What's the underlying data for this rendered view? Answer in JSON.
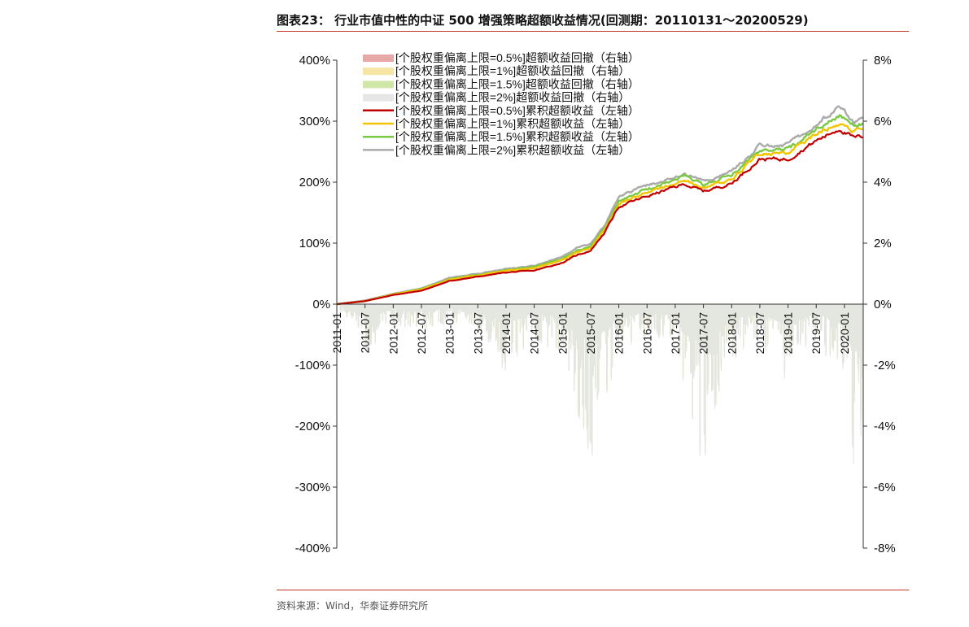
{
  "header": {
    "title": "图表23： 行业市值中性的中证 500 增强策略超额收益情况(回测期：20110131～20200529)"
  },
  "footer": {
    "source": "资料来源：Wind，华泰证券研究所"
  },
  "colors": {
    "accent_rule": "#c0392b",
    "axis": "#333333"
  },
  "chart_data": {
    "type": "line",
    "left_axis": {
      "range": [
        -400,
        400
      ],
      "ticks": [
        400,
        300,
        200,
        100,
        0,
        -100,
        -200,
        -300,
        -400
      ],
      "tick_labels": [
        "400%",
        "300%",
        "200%",
        "100%",
        "0%",
        "-100%",
        "-200%",
        "-300%",
        "-400%"
      ]
    },
    "right_axis": {
      "range": [
        -8,
        8
      ],
      "ticks": [
        8,
        6,
        4,
        2,
        0,
        -2,
        -4,
        -6,
        -8
      ],
      "tick_labels": [
        "8%",
        "6%",
        "4%",
        "2%",
        "0%",
        "-2%",
        "-4%",
        "-6%",
        "-8%"
      ]
    },
    "x_axis": {
      "range": [
        "2011-01",
        "2020-05"
      ],
      "tick_labels": [
        "2011-01",
        "2011-07",
        "2012-01",
        "2012-07",
        "2013-01",
        "2013-07",
        "2014-01",
        "2014-07",
        "2015-01",
        "2015-07",
        "2016-01",
        "2016-07",
        "2017-01",
        "2017-07",
        "2018-01",
        "2018-07",
        "2019-01",
        "2019-07",
        "2020-01"
      ]
    },
    "legend_position": "top-left",
    "grid": false,
    "drawdown_series": [
      {
        "name": "[个股权重偏离上限=0.5%]超额收益回撤（右轴）",
        "color": "#e8a8a8",
        "x": [
          "2011-01",
          "2011-07",
          "2012-01",
          "2012-07",
          "2013-01",
          "2013-07",
          "2014-01",
          "2014-07",
          "2015-01",
          "2015-07",
          "2016-01",
          "2016-07",
          "2017-01",
          "2017-07",
          "2018-01",
          "2018-07",
          "2019-01",
          "2019-07",
          "2020-01",
          "2020-05"
        ],
        "values": [
          0,
          -1.5,
          -0.6,
          -0.8,
          -0.5,
          -0.9,
          -2.0,
          -1.0,
          -1.6,
          -4.9,
          -1.5,
          -1.0,
          -1.2,
          -5.5,
          -1.7,
          -1.2,
          -2.3,
          -1.0,
          -2.4,
          -6.8
        ]
      },
      {
        "name": "[个股权重偏离上限=1%]超额收益回撤（右轴）",
        "color": "#f7e5a6",
        "x": [
          "2011-01",
          "2011-07",
          "2012-01",
          "2012-07",
          "2013-01",
          "2013-07",
          "2014-01",
          "2014-07",
          "2015-01",
          "2015-07",
          "2016-01",
          "2016-07",
          "2017-01",
          "2017-07",
          "2018-01",
          "2018-07",
          "2019-01",
          "2019-07",
          "2020-01",
          "2020-05"
        ],
        "values": [
          0,
          -1.6,
          -0.6,
          -0.8,
          -0.6,
          -1.0,
          -2.1,
          -1.1,
          -1.7,
          -5.0,
          -1.6,
          -1.0,
          -1.3,
          -5.6,
          -1.8,
          -1.3,
          -2.4,
          -1.1,
          -2.5,
          -7.0
        ]
      },
      {
        "name": "[个股权重偏离上限=1.5%]超额收益回撤（右轴）",
        "color": "#cfe6a8",
        "x": [
          "2011-01",
          "2011-07",
          "2012-01",
          "2012-07",
          "2013-01",
          "2013-07",
          "2014-01",
          "2014-07",
          "2015-01",
          "2015-07",
          "2016-01",
          "2016-07",
          "2017-01",
          "2017-07",
          "2018-01",
          "2018-07",
          "2019-01",
          "2019-07",
          "2020-01",
          "2020-05"
        ],
        "values": [
          0,
          -1.6,
          -0.7,
          -0.9,
          -0.6,
          -1.0,
          -2.2,
          -1.1,
          -1.8,
          -5.1,
          -1.6,
          -1.1,
          -1.3,
          -5.8,
          -1.8,
          -1.3,
          -2.5,
          -1.1,
          -2.6,
          -7.2
        ]
      },
      {
        "name": "[个股权重偏离上限=2%]超额收益回撤（右轴）",
        "color": "#e6e6e6",
        "x": [
          "2011-01",
          "2011-07",
          "2012-01",
          "2012-07",
          "2013-01",
          "2013-07",
          "2014-01",
          "2014-07",
          "2015-01",
          "2015-07",
          "2016-01",
          "2016-07",
          "2017-01",
          "2017-07",
          "2018-01",
          "2018-07",
          "2019-01",
          "2019-07",
          "2020-01",
          "2020-05"
        ],
        "values": [
          0,
          -1.7,
          -0.7,
          -0.9,
          -0.6,
          -1.1,
          -2.3,
          -1.2,
          -1.8,
          -5.2,
          -1.7,
          -1.1,
          -1.4,
          -5.9,
          -1.9,
          -1.4,
          -2.6,
          -1.2,
          -2.7,
          -8.1
        ]
      }
    ],
    "cumulative_series": [
      {
        "name": "[个股权重偏离上限=0.5%]累积超额收益（左轴）",
        "color": "#c00000",
        "x": [
          "2011-01",
          "2011-07",
          "2012-01",
          "2012-07",
          "2013-01",
          "2013-07",
          "2014-01",
          "2014-07",
          "2015-01",
          "2015-04",
          "2015-07",
          "2015-10",
          "2016-01",
          "2016-07",
          "2017-01",
          "2017-03",
          "2017-07",
          "2018-01",
          "2018-07",
          "2019-01",
          "2019-07",
          "2019-12",
          "2020-03",
          "2020-05"
        ],
        "values": [
          0,
          5,
          15,
          22,
          38,
          45,
          52,
          55,
          68,
          80,
          88,
          118,
          160,
          177,
          192,
          197,
          185,
          198,
          238,
          238,
          268,
          288,
          272,
          275
        ]
      },
      {
        "name": "[个股权重偏离上限=1%]累积超额收益（左轴）",
        "color": "#f2c500",
        "x": [
          "2011-01",
          "2011-07",
          "2012-01",
          "2012-07",
          "2013-01",
          "2013-07",
          "2014-01",
          "2014-07",
          "2015-01",
          "2015-04",
          "2015-07",
          "2015-10",
          "2016-01",
          "2016-07",
          "2017-01",
          "2017-03",
          "2017-07",
          "2018-01",
          "2018-07",
          "2019-01",
          "2019-07",
          "2019-12",
          "2020-03",
          "2020-05"
        ],
        "values": [
          0,
          5,
          16,
          24,
          40,
          47,
          55,
          59,
          72,
          85,
          92,
          122,
          165,
          183,
          198,
          204,
          190,
          206,
          247,
          247,
          280,
          298,
          285,
          290
        ]
      },
      {
        "name": "[个股权重偏离上限=1.5%]累积超额收益（左轴）",
        "color": "#7ac943",
        "x": [
          "2011-01",
          "2011-07",
          "2012-01",
          "2012-07",
          "2013-01",
          "2013-07",
          "2014-01",
          "2014-07",
          "2015-01",
          "2015-04",
          "2015-07",
          "2015-10",
          "2016-01",
          "2016-07",
          "2017-01",
          "2017-03",
          "2017-07",
          "2018-01",
          "2018-07",
          "2019-01",
          "2019-07",
          "2019-12",
          "2020-03",
          "2020-05"
        ],
        "values": [
          0,
          5,
          16,
          25,
          41,
          48,
          56,
          61,
          75,
          88,
          95,
          126,
          170,
          188,
          203,
          210,
          195,
          212,
          253,
          253,
          288,
          308,
          292,
          297
        ]
      },
      {
        "name": "[个股权重偏离上限=2%]累积超额收益（左轴）",
        "color": "#aaaaaa",
        "x": [
          "2011-01",
          "2011-07",
          "2012-01",
          "2012-07",
          "2013-01",
          "2013-07",
          "2014-01",
          "2014-07",
          "2015-01",
          "2015-04",
          "2015-07",
          "2015-10",
          "2016-01",
          "2016-07",
          "2017-01",
          "2017-03",
          "2017-07",
          "2018-01",
          "2018-07",
          "2019-01",
          "2019-07",
          "2019-12",
          "2020-03",
          "2020-05"
        ],
        "values": [
          0,
          6,
          17,
          26,
          43,
          50,
          58,
          63,
          78,
          92,
          99,
          130,
          176,
          194,
          208,
          216,
          200,
          218,
          260,
          261,
          296,
          322,
          300,
          305
        ]
      }
    ]
  }
}
